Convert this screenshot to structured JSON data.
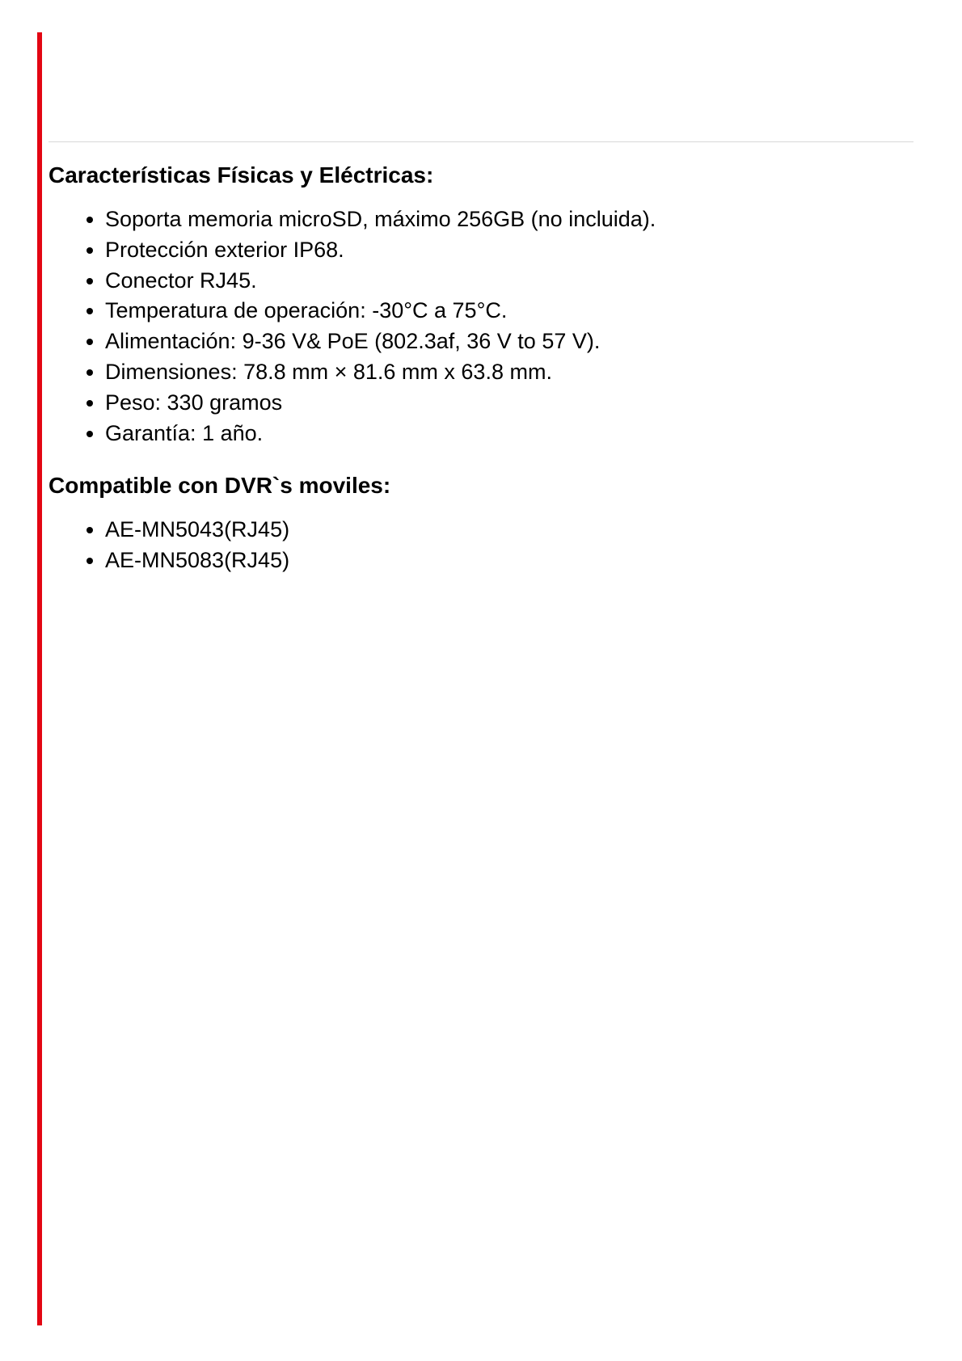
{
  "section1": {
    "heading": "Características Físicas y Eléctricas:",
    "items": [
      "Soporta memoria microSD, máximo 256GB (no incluida).",
      "Protección exterior IP68.",
      "Conector RJ45.",
      "Temperatura de operación: -30°C a 75°C.",
      "Alimentación: 9-36 V& PoE (802.3af, 36 V to 57 V).",
      "Dimensiones: 78.8 mm × 81.6 mm x 63.8 mm.",
      "Peso: 330 gramos",
      "Garantía: 1 año."
    ]
  },
  "section2": {
    "heading": "Compatible con DVR`s moviles:",
    "items": [
      "AE-MN5043(RJ45)",
      "AE-MN5083(RJ45)"
    ]
  },
  "colors": {
    "accent": "#e30613",
    "text": "#000000",
    "background": "#ffffff",
    "divider": "#d8d8d8"
  }
}
